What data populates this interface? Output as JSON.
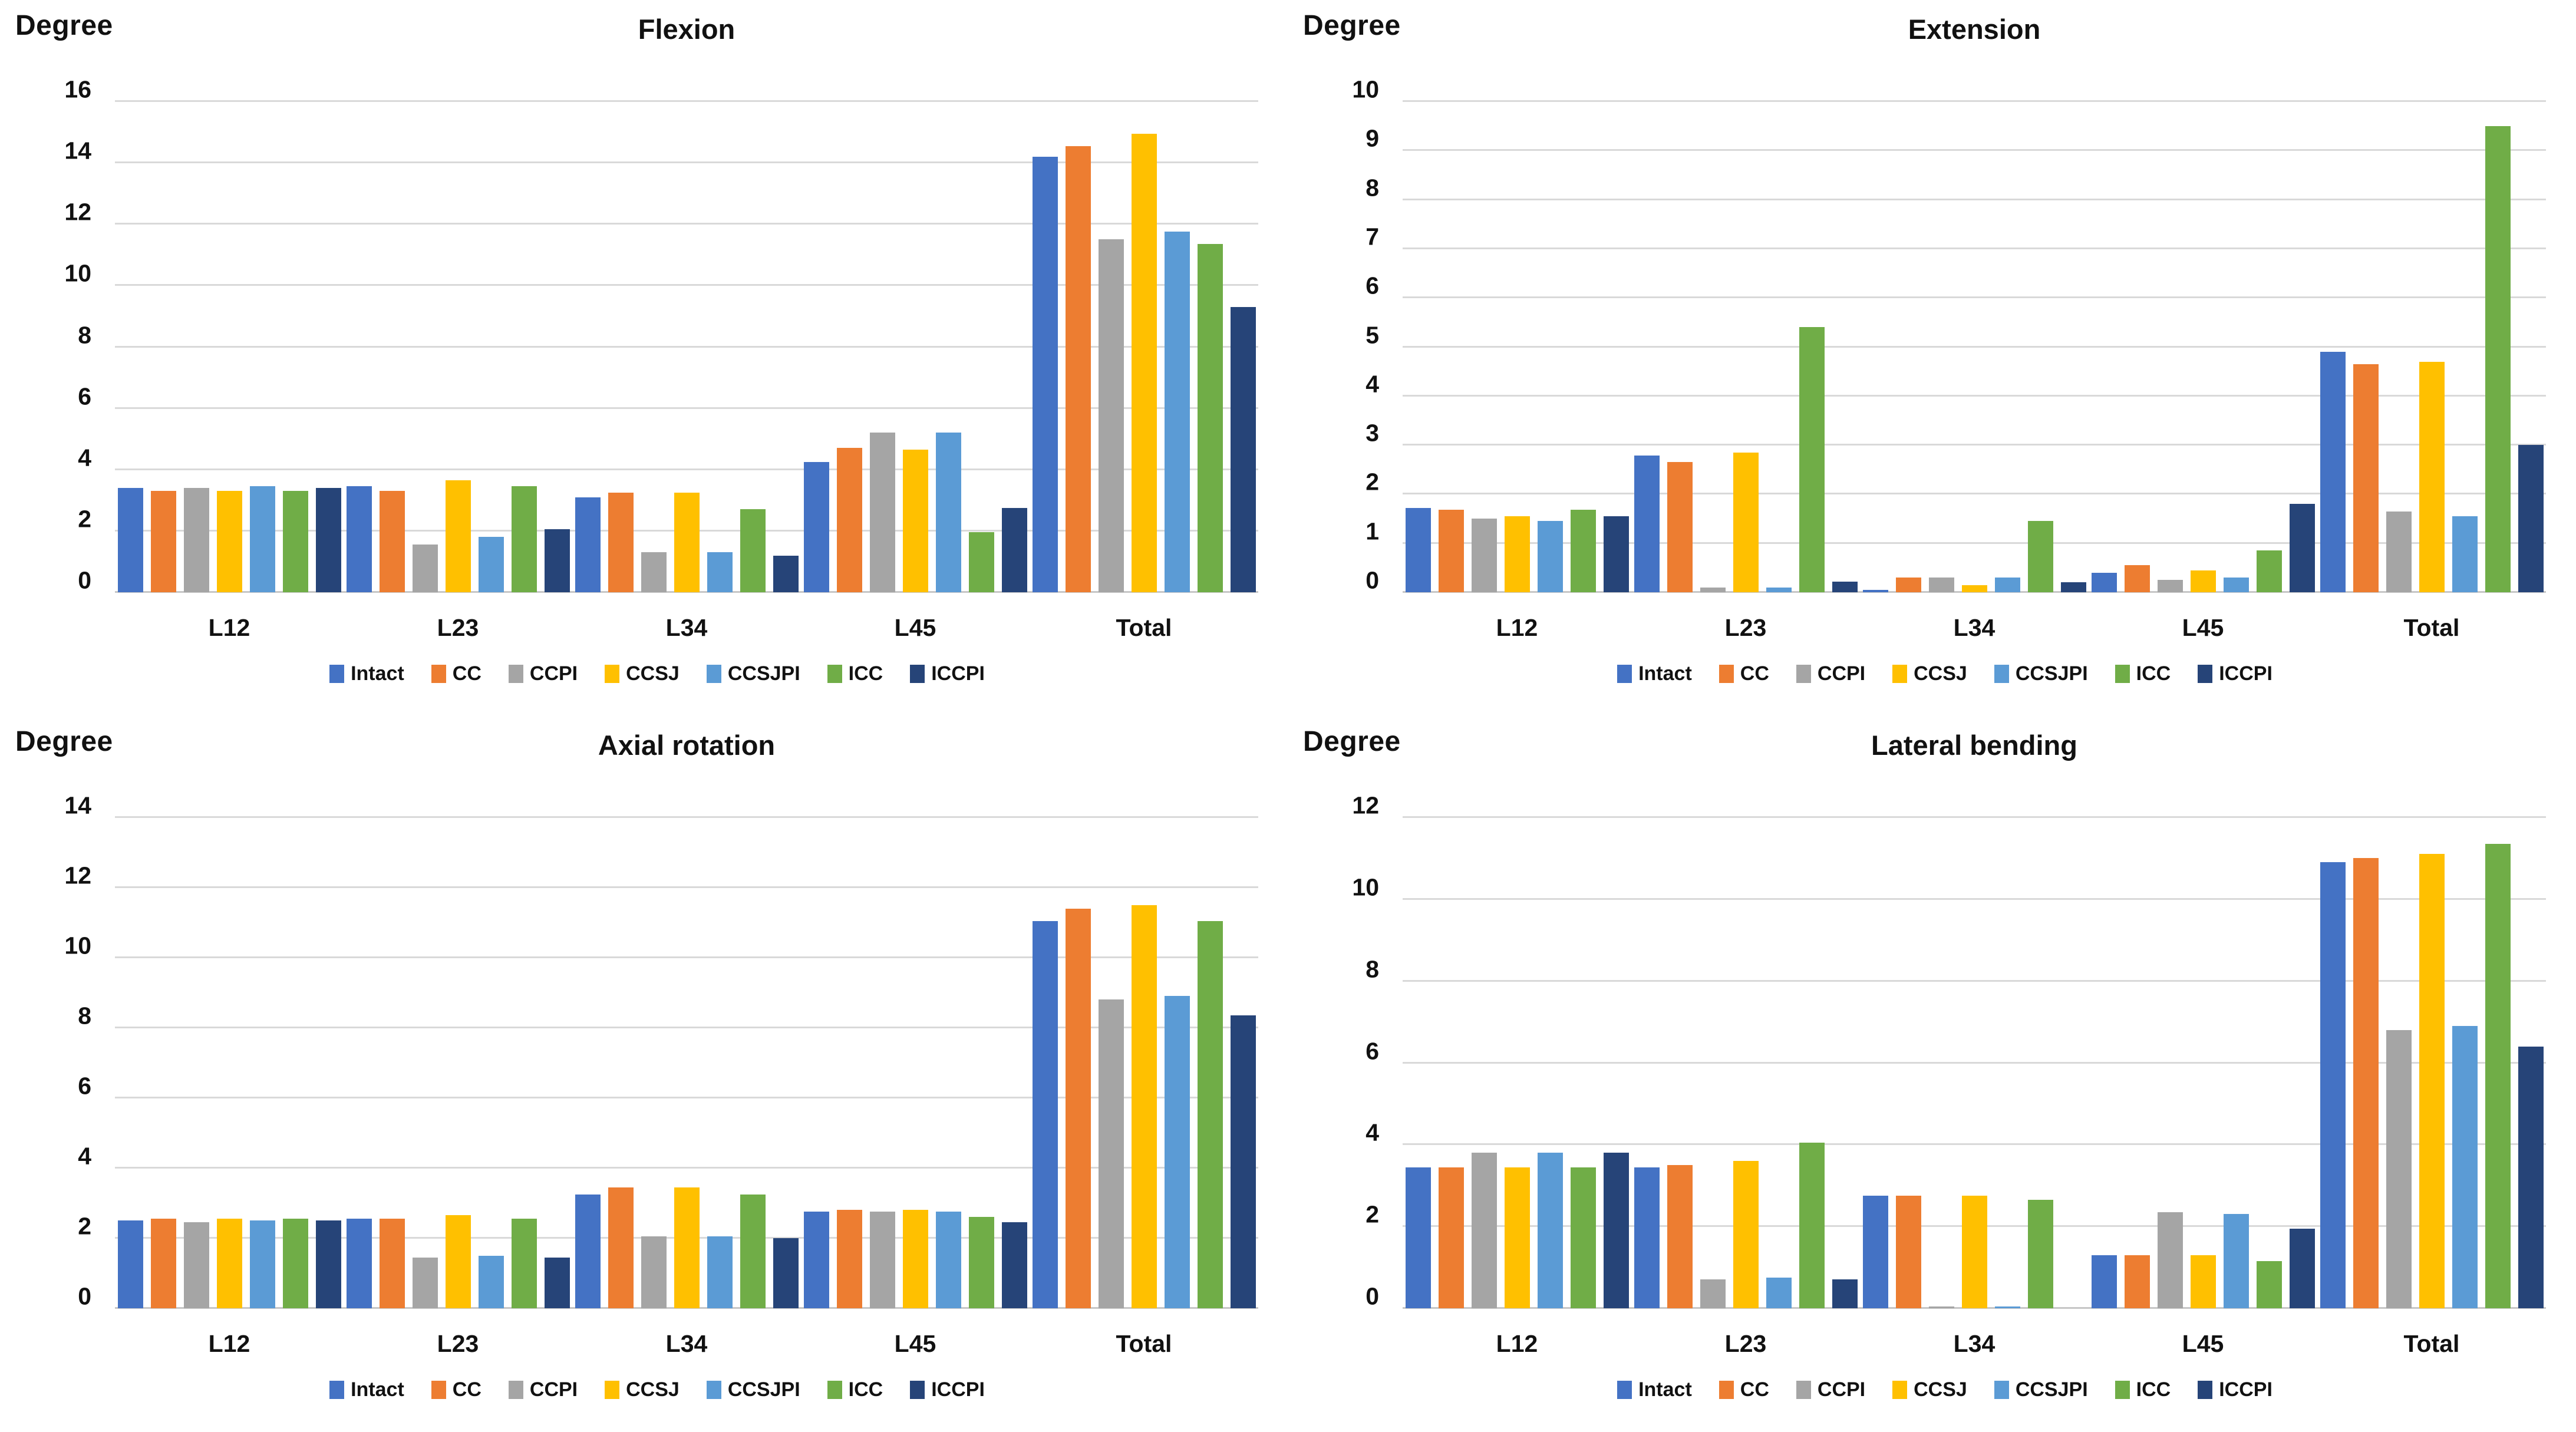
{
  "page": {
    "background": "#ffffff",
    "text_color": "#111111",
    "gridline_color": "#d9d9d9"
  },
  "legend": {
    "series": [
      {
        "name": "Intact",
        "color": "#4472C4"
      },
      {
        "name": "CC",
        "color": "#ED7D31"
      },
      {
        "name": "CCPI",
        "color": "#A5A5A5"
      },
      {
        "name": "CCSJ",
        "color": "#FFC000"
      },
      {
        "name": "CCSJPI",
        "color": "#5B9BD5"
      },
      {
        "name": "ICC",
        "color": "#70AD47"
      },
      {
        "name": "ICCPI",
        "color": "#264478"
      }
    ]
  },
  "chart_data": [
    {
      "type": "bar",
      "title": "Flexion",
      "ylabel": "Degree",
      "ylim": [
        0,
        16
      ],
      "ytick_step": 2,
      "grid": true,
      "legend_position": "bottom",
      "categories": [
        "L12",
        "L23",
        "L34",
        "L45",
        "Total"
      ],
      "series": [
        {
          "name": "Intact",
          "values": [
            3.4,
            3.45,
            3.1,
            4.25,
            14.2
          ]
        },
        {
          "name": "CC",
          "values": [
            3.3,
            3.3,
            3.25,
            4.7,
            14.55
          ]
        },
        {
          "name": "CCPI",
          "values": [
            3.4,
            1.55,
            1.3,
            5.2,
            11.5
          ]
        },
        {
          "name": "CCSJ",
          "values": [
            3.3,
            3.65,
            3.25,
            4.65,
            14.95
          ]
        },
        {
          "name": "CCSJPI",
          "values": [
            3.45,
            1.8,
            1.3,
            5.2,
            11.75
          ]
        },
        {
          "name": "ICC",
          "values": [
            3.3,
            3.45,
            2.7,
            1.95,
            11.35
          ]
        },
        {
          "name": "ICCPI",
          "values": [
            3.4,
            2.05,
            1.2,
            2.75,
            9.3
          ]
        }
      ]
    },
    {
      "type": "bar",
      "title": "Extension",
      "ylabel": "Degree",
      "ylim": [
        0,
        10
      ],
      "ytick_step": 1,
      "grid": true,
      "legend_position": "bottom",
      "categories": [
        "L12",
        "L23",
        "L34",
        "L45",
        "Total"
      ],
      "series": [
        {
          "name": "Intact",
          "values": [
            1.72,
            2.78,
            0.05,
            0.4,
            4.9
          ]
        },
        {
          "name": "CC",
          "values": [
            1.68,
            2.65,
            0.3,
            0.55,
            4.65
          ]
        },
        {
          "name": "CCPI",
          "values": [
            1.5,
            0.1,
            0.3,
            0.25,
            1.65
          ]
        },
        {
          "name": "CCSJ",
          "values": [
            1.55,
            2.85,
            0.15,
            0.45,
            4.7
          ]
        },
        {
          "name": "CCSJPI",
          "values": [
            1.45,
            0.1,
            0.3,
            0.3,
            1.55
          ]
        },
        {
          "name": "ICC",
          "values": [
            1.68,
            5.4,
            1.45,
            0.85,
            9.5
          ]
        },
        {
          "name": "ICCPI",
          "values": [
            1.55,
            0.22,
            0.2,
            1.8,
            3.0
          ]
        }
      ]
    },
    {
      "type": "bar",
      "title": "Axial rotation",
      "ylabel": "Degree",
      "ylim": [
        0,
        14
      ],
      "ytick_step": 2,
      "grid": true,
      "legend_position": "bottom",
      "categories": [
        "L12",
        "L23",
        "L34",
        "L45",
        "Total"
      ],
      "series": [
        {
          "name": "Intact",
          "values": [
            2.5,
            2.55,
            3.25,
            2.75,
            11.05
          ]
        },
        {
          "name": "CC",
          "values": [
            2.55,
            2.55,
            3.45,
            2.8,
            11.4
          ]
        },
        {
          "name": "CCPI",
          "values": [
            2.45,
            1.45,
            2.05,
            2.75,
            8.8
          ]
        },
        {
          "name": "CCSJ",
          "values": [
            2.55,
            2.65,
            3.45,
            2.8,
            11.5
          ]
        },
        {
          "name": "CCSJPI",
          "values": [
            2.5,
            1.5,
            2.05,
            2.75,
            8.9
          ]
        },
        {
          "name": "ICC",
          "values": [
            2.55,
            2.55,
            3.25,
            2.6,
            11.05
          ]
        },
        {
          "name": "ICCPI",
          "values": [
            2.5,
            1.45,
            2.0,
            2.45,
            8.35
          ]
        }
      ]
    },
    {
      "type": "bar",
      "title": "Lateral bending",
      "ylabel": "Degree",
      "ylim": [
        0,
        12
      ],
      "ytick_step": 2,
      "grid": true,
      "legend_position": "bottom",
      "categories": [
        "L12",
        "L23",
        "L34",
        "L45",
        "Total"
      ],
      "series": [
        {
          "name": "Intact",
          "values": [
            3.45,
            3.45,
            2.75,
            1.3,
            10.9
          ]
        },
        {
          "name": "CC",
          "values": [
            3.45,
            3.5,
            2.75,
            1.3,
            11.0
          ]
        },
        {
          "name": "CCPI",
          "values": [
            3.8,
            0.7,
            0.05,
            2.35,
            6.8
          ]
        },
        {
          "name": "CCSJ",
          "values": [
            3.45,
            3.6,
            2.75,
            1.3,
            11.1
          ]
        },
        {
          "name": "CCSJPI",
          "values": [
            3.8,
            0.75,
            0.05,
            2.3,
            6.9
          ]
        },
        {
          "name": "ICC",
          "values": [
            3.45,
            4.05,
            2.65,
            1.15,
            11.35
          ]
        },
        {
          "name": "ICCPI",
          "values": [
            3.8,
            0.7,
            0.0,
            1.95,
            6.4
          ]
        }
      ]
    }
  ]
}
